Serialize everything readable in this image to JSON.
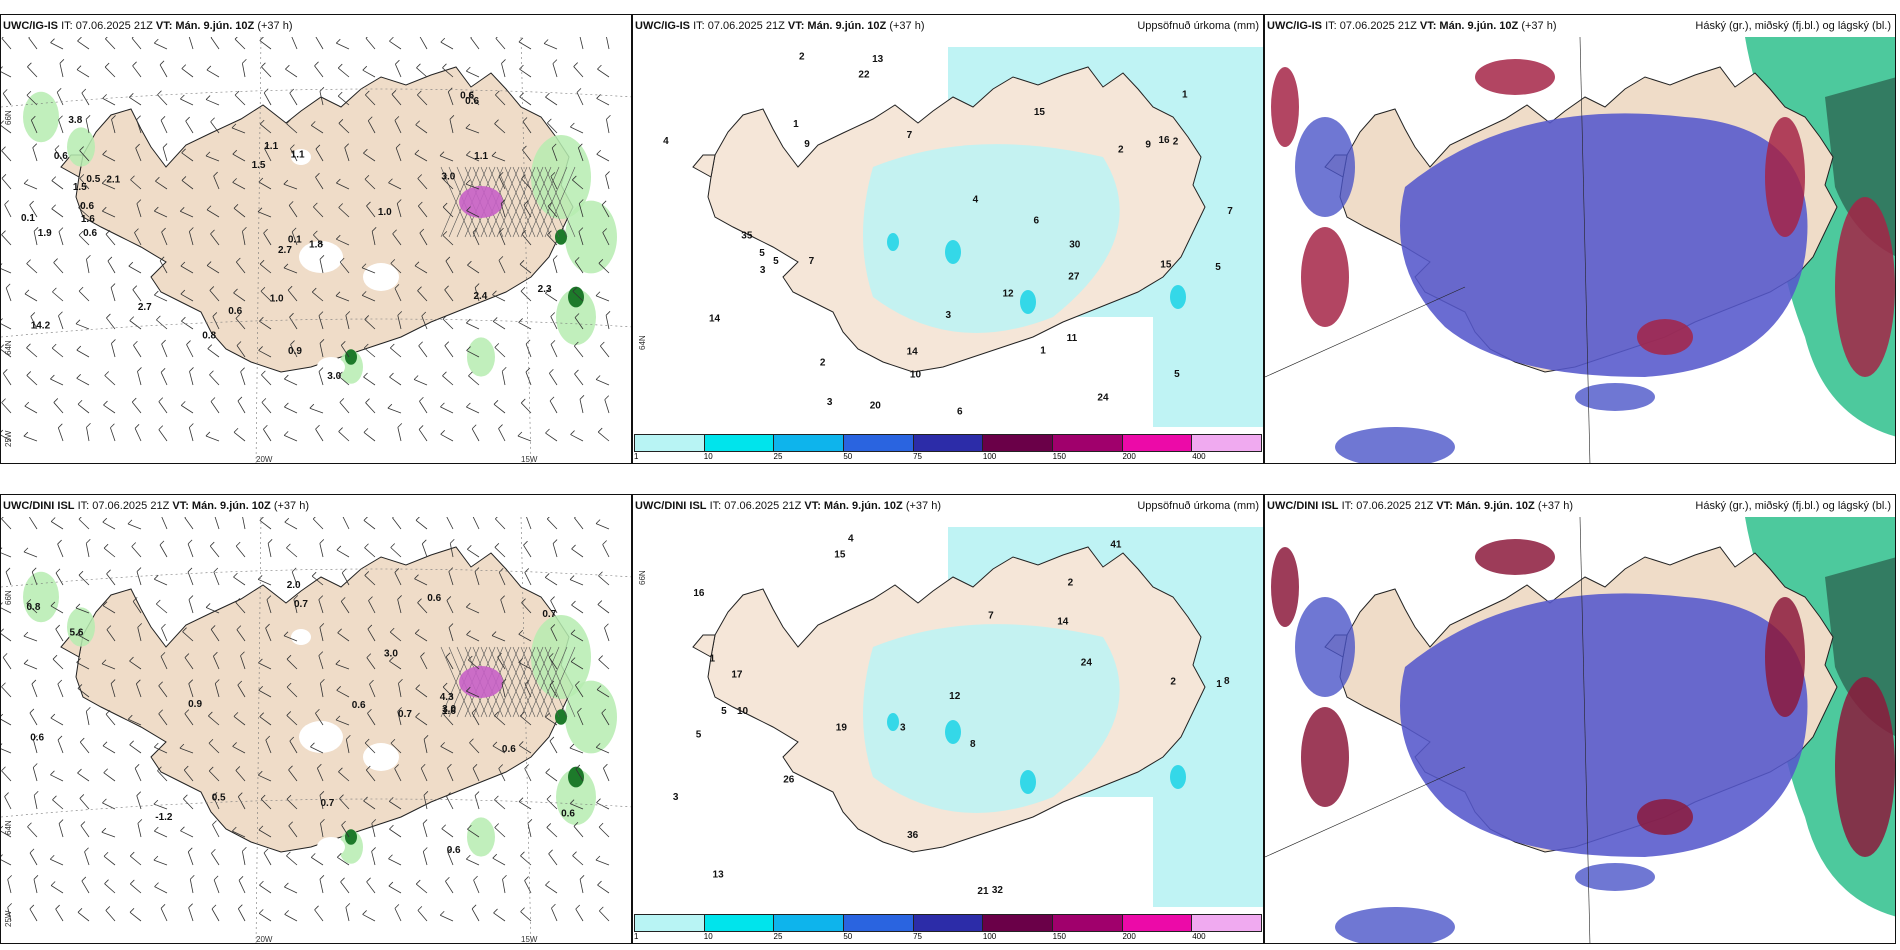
{
  "panels": [
    {
      "model": "UWC/IG-IS",
      "it": "IT: 07.06.2025 21Z",
      "vt": "VT: Mán. 9.jún. 10Z",
      "lead": "(+37 h)",
      "title": ""
    },
    {
      "model": "UWC/IG-IS",
      "it": "IT: 07.06.2025 21Z",
      "vt": "VT: Mán. 9.jún. 10Z",
      "lead": "(+37 h)",
      "title": "Uppsöfnuð úrkoma (mm)"
    },
    {
      "model": "UWC/IG-IS",
      "it": "IT: 07.06.2025 21Z",
      "vt": "VT: Mán. 9.jún. 10Z",
      "lead": "(+37 h)",
      "title": "Háský (gr.), miðský (fj.bl.) og lágský (bl.)"
    },
    {
      "model": "UWC/DINI ISL",
      "it": "IT: 07.06.2025 21Z",
      "vt": "VT: Mán. 9.jún. 10Z",
      "lead": "(+37 h)",
      "title": ""
    },
    {
      "model": "UWC/DINI ISL",
      "it": "IT: 07.06.2025 21Z",
      "vt": "VT: Mán. 9.jún. 10Z",
      "lead": "(+37 h)",
      "title": "Uppsöfnuð úrkoma (mm)"
    },
    {
      "model": "UWC/DINI ISL",
      "it": "IT: 07.06.2025 21Z",
      "vt": "VT: Mán. 9.jún. 10Z",
      "lead": "(+37 h)",
      "title": "Háský (gr.), miðský (fj.bl.) og lágský (bl.)"
    }
  ],
  "colorbar": {
    "labels": [
      "1",
      "10",
      "25",
      "50",
      "75",
      "100",
      "150",
      "200",
      "400"
    ],
    "colors": [
      "#b8f4f4",
      "#00e4ec",
      "#0eb4ec",
      "#2a64e0",
      "#2c2ca8",
      "#6a0048",
      "#a0006c",
      "#ec0aa8",
      "#f0aaf0"
    ]
  },
  "axes": {
    "lon": [
      "20W",
      "15W"
    ],
    "lat": [
      "66N",
      "64N"
    ],
    "lon_west": "25W",
    "lat_right": "66N"
  },
  "labels": {
    "p1": [
      "0.6",
      "1.8",
      "3.0",
      "1.5",
      "3.8",
      "2.1",
      "0.5",
      "0.6",
      "0.8",
      "0.1",
      "2.3",
      "0.6",
      "1.1",
      "1.1",
      "1.0",
      "0.9",
      "0.6",
      "1.1",
      "2.4",
      "2.7",
      "1.6",
      "0.6",
      "1.5",
      "0.1",
      "3.0",
      "1.9",
      "2.7",
      "14.2",
      "1.0",
      "0.6"
    ],
    "p2": [
      "5",
      "1",
      "2",
      "7",
      "1",
      "3",
      "4",
      "5",
      "7",
      "6",
      "4",
      "2",
      "14",
      "15",
      "13",
      "5",
      "9",
      "11",
      "9",
      "7",
      "12",
      "15",
      "10",
      "20",
      "27",
      "30",
      "22",
      "24",
      "14",
      "16",
      "35",
      "1",
      "2",
      "3",
      "3",
      "2",
      "5",
      "6"
    ],
    "p4": [
      "2.0",
      "0.6",
      "0.6",
      "-1.2",
      "0.7",
      "0.6",
      "0.5",
      "0.8",
      "3.0",
      "5.6",
      "0.7",
      "0.6",
      "0.6",
      "1.6",
      "0.9",
      "0.7",
      "0.6",
      "4.3",
      "3.0",
      "0.7"
    ],
    "p5": [
      "4",
      "2",
      "1",
      "3",
      "8",
      "10",
      "16",
      "14",
      "5",
      "7",
      "12",
      "13",
      "15",
      "19",
      "21",
      "32",
      "36",
      "41",
      "24",
      "26",
      "17",
      "5",
      "8",
      "2",
      "3",
      "1"
    ]
  }
}
